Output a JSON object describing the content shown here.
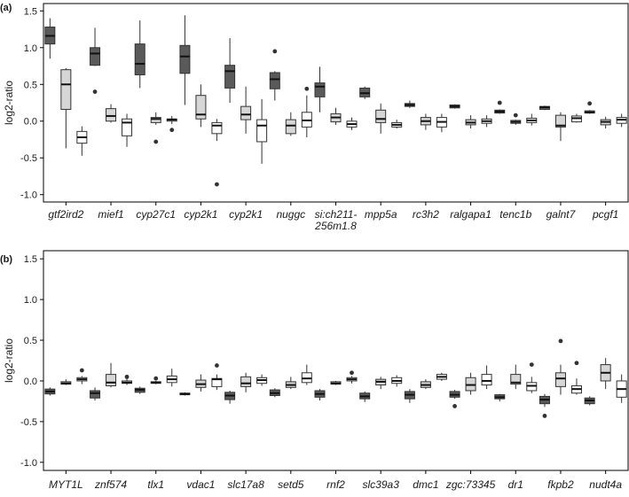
{
  "chart_data": [
    {
      "panel": "(a)",
      "type": "box",
      "ylabel": "log2-ratio",
      "ylim": [
        -1.1,
        1.6
      ],
      "yticks": [
        -1.0,
        -0.5,
        0.0,
        0.5,
        1.0,
        1.5
      ],
      "ytick_labels": [
        "-1.0",
        "-0.5",
        "0.0",
        "0.5",
        "1.0",
        "1.5"
      ],
      "series_colors": [
        "#5a5a5a",
        "#d6d6d6",
        "#ffffff"
      ],
      "groups": [
        {
          "label": [
            "gtf2ird2"
          ],
          "boxes": [
            {
              "min": 0.85,
              "q1": 1.05,
              "median": 1.16,
              "q3": 1.28,
              "max": 1.4,
              "outliers": []
            },
            {
              "min": -0.37,
              "q1": 0.16,
              "median": 0.5,
              "q3": 0.7,
              "max": 0.72,
              "outliers": []
            },
            {
              "min": -0.47,
              "q1": -0.3,
              "median": -0.22,
              "q3": -0.14,
              "max": -0.07,
              "outliers": []
            }
          ]
        },
        {
          "label": [
            "mief1"
          ],
          "boxes": [
            {
              "min": 0.75,
              "q1": 0.76,
              "median": 0.92,
              "q3": 1.0,
              "max": 1.27,
              "outliers": [
                0.4
              ]
            },
            {
              "min": -0.02,
              "q1": 0.0,
              "median": 0.07,
              "q3": 0.17,
              "max": 0.23,
              "outliers": []
            },
            {
              "min": -0.35,
              "q1": -0.2,
              "median": -0.02,
              "q3": 0.03,
              "max": 0.1,
              "outliers": []
            }
          ]
        },
        {
          "label": [
            "cyp27c1"
          ],
          "boxes": [
            {
              "min": 0.45,
              "q1": 0.63,
              "median": 0.78,
              "q3": 1.05,
              "max": 1.37,
              "outliers": []
            },
            {
              "min": -0.05,
              "q1": -0.02,
              "median": 0.03,
              "q3": 0.05,
              "max": 0.12,
              "outliers": [
                -0.28
              ]
            },
            {
              "min": -0.04,
              "q1": 0.0,
              "median": 0.02,
              "q3": 0.03,
              "max": 0.07,
              "outliers": [
                -0.12
              ]
            }
          ]
        },
        {
          "label": [
            "cyp2k1"
          ],
          "boxes": [
            {
              "min": 0.22,
              "q1": 0.65,
              "median": 0.88,
              "q3": 1.03,
              "max": 1.44,
              "outliers": []
            },
            {
              "min": -0.08,
              "q1": 0.03,
              "median": 0.09,
              "q3": 0.35,
              "max": 0.5,
              "outliers": []
            },
            {
              "min": -0.27,
              "q1": -0.17,
              "median": -0.06,
              "q3": -0.02,
              "max": 0.03,
              "outliers": [
                -0.86
              ]
            }
          ]
        },
        {
          "label": [
            "cyp2k1"
          ],
          "boxes": [
            {
              "min": 0.25,
              "q1": 0.45,
              "median": 0.68,
              "q3": 0.76,
              "max": 1.13,
              "outliers": []
            },
            {
              "min": -0.17,
              "q1": 0.02,
              "median": 0.09,
              "q3": 0.2,
              "max": 0.47,
              "outliers": []
            },
            {
              "min": -0.58,
              "q1": -0.28,
              "median": -0.06,
              "q3": 0.02,
              "max": 0.3,
              "outliers": []
            }
          ]
        },
        {
          "label": [
            "nuggc"
          ],
          "boxes": [
            {
              "min": 0.28,
              "q1": 0.44,
              "median": 0.57,
              "q3": 0.66,
              "max": 0.68,
              "outliers": [
                0.95
              ]
            },
            {
              "min": -0.2,
              "q1": -0.17,
              "median": -0.06,
              "q3": 0.02,
              "max": 0.12,
              "outliers": []
            },
            {
              "min": -0.22,
              "q1": -0.08,
              "median": 0.01,
              "q3": 0.12,
              "max": 0.35,
              "outliers": [
                0.44
              ]
            }
          ]
        },
        {
          "label": [
            "si:ch211-",
            "256m1.8"
          ],
          "boxes": [
            {
              "min": 0.12,
              "q1": 0.33,
              "median": 0.47,
              "q3": 0.52,
              "max": 0.74,
              "outliers": []
            },
            {
              "min": -0.05,
              "q1": -0.01,
              "median": 0.05,
              "q3": 0.1,
              "max": 0.18,
              "outliers": []
            },
            {
              "min": -0.12,
              "q1": -0.08,
              "median": -0.04,
              "q3": 0.0,
              "max": 0.05,
              "outliers": []
            }
          ]
        },
        {
          "label": [
            "mpp5a"
          ],
          "boxes": [
            {
              "min": 0.3,
              "q1": 0.33,
              "median": 0.38,
              "q3": 0.45,
              "max": 0.47,
              "outliers": []
            },
            {
              "min": -0.17,
              "q1": -0.02,
              "median": 0.03,
              "q3": 0.15,
              "max": 0.24,
              "outliers": []
            },
            {
              "min": -0.1,
              "q1": -0.08,
              "median": -0.05,
              "q3": -0.02,
              "max": 0.02,
              "outliers": []
            }
          ]
        },
        {
          "label": [
            "rc3h2"
          ],
          "boxes": [
            {
              "min": 0.18,
              "q1": 0.2,
              "median": 0.22,
              "q3": 0.24,
              "max": 0.28,
              "outliers": []
            },
            {
              "min": -0.12,
              "q1": -0.05,
              "median": 0.0,
              "q3": 0.05,
              "max": 0.1,
              "outliers": []
            },
            {
              "min": -0.15,
              "q1": -0.08,
              "median": -0.01,
              "q3": 0.05,
              "max": 0.1,
              "outliers": []
            }
          ]
        },
        {
          "label": [
            "ralgapa1"
          ],
          "boxes": [
            {
              "min": 0.17,
              "q1": 0.18,
              "median": 0.2,
              "q3": 0.22,
              "max": 0.23,
              "outliers": []
            },
            {
              "min": -0.1,
              "q1": -0.05,
              "median": -0.02,
              "q3": 0.02,
              "max": 0.08,
              "outliers": []
            },
            {
              "min": -0.08,
              "q1": -0.03,
              "median": 0.0,
              "q3": 0.03,
              "max": 0.08,
              "outliers": []
            }
          ]
        },
        {
          "label": [
            "tenc1b"
          ],
          "boxes": [
            {
              "min": 0.1,
              "q1": 0.11,
              "median": 0.13,
              "q3": 0.15,
              "max": 0.16,
              "outliers": [
                0.25
              ]
            },
            {
              "min": -0.05,
              "q1": -0.03,
              "median": -0.01,
              "q3": 0.01,
              "max": 0.02,
              "outliers": [
                0.08
              ]
            },
            {
              "min": -0.06,
              "q1": -0.02,
              "median": 0.01,
              "q3": 0.04,
              "max": 0.1,
              "outliers": []
            }
          ]
        },
        {
          "label": [
            "galnt7"
          ],
          "boxes": [
            {
              "min": 0.15,
              "q1": 0.16,
              "median": 0.19,
              "q3": 0.2,
              "max": 0.21,
              "outliers": []
            },
            {
              "min": -0.27,
              "q1": -0.08,
              "median": -0.06,
              "q3": 0.08,
              "max": 0.12,
              "outliers": []
            },
            {
              "min": -0.02,
              "q1": -0.01,
              "median": 0.04,
              "q3": 0.07,
              "max": 0.1,
              "outliers": []
            }
          ]
        },
        {
          "label": [
            "pcgf1"
          ],
          "boxes": [
            {
              "min": 0.1,
              "q1": 0.11,
              "median": 0.12,
              "q3": 0.14,
              "max": 0.15,
              "outliers": [
                0.24
              ]
            },
            {
              "min": -0.1,
              "q1": -0.05,
              "median": -0.01,
              "q3": 0.02,
              "max": 0.06,
              "outliers": []
            },
            {
              "min": -0.08,
              "q1": -0.03,
              "median": 0.02,
              "q3": 0.05,
              "max": 0.1,
              "outliers": []
            }
          ]
        }
      ]
    },
    {
      "panel": "(b)",
      "type": "box",
      "ylabel": "log2-ratio",
      "ylim": [
        -1.1,
        1.6
      ],
      "yticks": [
        -1.0,
        -0.5,
        0.0,
        0.5,
        1.0,
        1.5
      ],
      "ytick_labels": [
        "-1.0",
        "-0.5",
        "0.0",
        "0.5",
        "1.0",
        "1.5"
      ],
      "series_colors": [
        "#5a5a5a",
        "#d6d6d6",
        "#ffffff"
      ],
      "groups": [
        {
          "label": [
            "MYT1L"
          ],
          "boxes": [
            {
              "min": -0.18,
              "q1": -0.16,
              "median": -0.13,
              "q3": -0.1,
              "max": -0.08,
              "outliers": []
            },
            {
              "min": -0.05,
              "q1": -0.04,
              "median": -0.03,
              "q3": -0.01,
              "max": 0.02,
              "outliers": []
            },
            {
              "min": -0.04,
              "q1": 0.0,
              "median": 0.02,
              "q3": 0.04,
              "max": 0.06,
              "outliers": [
                0.13
              ]
            }
          ]
        },
        {
          "label": [
            "znf574"
          ],
          "boxes": [
            {
              "min": -0.24,
              "q1": -0.21,
              "median": -0.15,
              "q3": -0.12,
              "max": -0.08,
              "outliers": []
            },
            {
              "min": -0.08,
              "q1": -0.06,
              "median": -0.02,
              "q3": 0.08,
              "max": 0.22,
              "outliers": []
            },
            {
              "min": -0.05,
              "q1": -0.03,
              "median": -0.02,
              "q3": 0.0,
              "max": 0.04,
              "outliers": [
                0.05
              ]
            }
          ]
        },
        {
          "label": [
            "tlx1"
          ],
          "boxes": [
            {
              "min": -0.16,
              "q1": -0.14,
              "median": -0.11,
              "q3": -0.09,
              "max": -0.07,
              "outliers": []
            },
            {
              "min": -0.04,
              "q1": -0.03,
              "median": -0.02,
              "q3": -0.01,
              "max": 0.0,
              "outliers": [
                0.03
              ]
            },
            {
              "min": -0.07,
              "q1": -0.02,
              "median": 0.02,
              "q3": 0.06,
              "max": 0.15,
              "outliers": []
            }
          ]
        },
        {
          "label": [
            "vdac1"
          ],
          "boxes": [
            {
              "min": -0.18,
              "q1": -0.17,
              "median": -0.16,
              "q3": -0.15,
              "max": -0.14,
              "outliers": []
            },
            {
              "min": -0.13,
              "q1": -0.08,
              "median": -0.04,
              "q3": 0.01,
              "max": 0.08,
              "outliers": []
            },
            {
              "min": -0.11,
              "q1": -0.07,
              "median": 0.02,
              "q3": 0.03,
              "max": 0.08,
              "outliers": [
                0.19
              ]
            }
          ]
        },
        {
          "label": [
            "slc17a8"
          ],
          "boxes": [
            {
              "min": -0.28,
              "q1": -0.23,
              "median": -0.18,
              "q3": -0.14,
              "max": -0.12,
              "outliers": []
            },
            {
              "min": -0.14,
              "q1": -0.07,
              "median": -0.03,
              "q3": 0.05,
              "max": 0.1,
              "outliers": []
            },
            {
              "min": -0.06,
              "q1": -0.03,
              "median": 0.01,
              "q3": 0.04,
              "max": 0.08,
              "outliers": []
            }
          ]
        },
        {
          "label": [
            "setd5"
          ],
          "boxes": [
            {
              "min": -0.2,
              "q1": -0.18,
              "median": -0.15,
              "q3": -0.11,
              "max": -0.09,
              "outliers": []
            },
            {
              "min": -0.1,
              "q1": -0.08,
              "median": -0.05,
              "q3": -0.01,
              "max": 0.05,
              "outliers": []
            },
            {
              "min": -0.05,
              "q1": -0.02,
              "median": 0.03,
              "q3": 0.1,
              "max": 0.2,
              "outliers": []
            }
          ]
        },
        {
          "label": [
            "rnf2"
          ],
          "boxes": [
            {
              "min": -0.24,
              "q1": -0.2,
              "median": -0.16,
              "q3": -0.12,
              "max": -0.1,
              "outliers": []
            },
            {
              "min": -0.05,
              "q1": -0.04,
              "median": -0.03,
              "q3": -0.01,
              "max": 0.0,
              "outliers": []
            },
            {
              "min": -0.03,
              "q1": 0.0,
              "median": 0.02,
              "q3": 0.04,
              "max": 0.06,
              "outliers": [
                0.1
              ]
            }
          ]
        },
        {
          "label": [
            "slc39a3"
          ],
          "boxes": [
            {
              "min": -0.26,
              "q1": -0.22,
              "median": -0.19,
              "q3": -0.15,
              "max": -0.13,
              "outliers": []
            },
            {
              "min": -0.1,
              "q1": -0.05,
              "median": -0.01,
              "q3": 0.02,
              "max": 0.05,
              "outliers": []
            },
            {
              "min": -0.07,
              "q1": -0.03,
              "median": 0.0,
              "q3": 0.04,
              "max": 0.07,
              "outliers": []
            }
          ]
        },
        {
          "label": [
            "dmc1"
          ],
          "boxes": [
            {
              "min": -0.27,
              "q1": -0.22,
              "median": -0.17,
              "q3": -0.13,
              "max": -0.1,
              "outliers": []
            },
            {
              "min": -0.1,
              "q1": -0.08,
              "median": -0.05,
              "q3": -0.01,
              "max": 0.02,
              "outliers": []
            },
            {
              "min": 0.0,
              "q1": 0.02,
              "median": 0.05,
              "q3": 0.08,
              "max": 0.1,
              "outliers": []
            }
          ]
        },
        {
          "label": [
            "zgc:73345"
          ],
          "boxes": [
            {
              "min": -0.22,
              "q1": -0.2,
              "median": -0.17,
              "q3": -0.13,
              "max": -0.11,
              "outliers": [
                -0.31
              ]
            },
            {
              "min": -0.17,
              "q1": -0.12,
              "median": -0.05,
              "q3": 0.04,
              "max": 0.1,
              "outliers": []
            },
            {
              "min": -0.1,
              "q1": -0.05,
              "median": 0.0,
              "q3": 0.08,
              "max": 0.19,
              "outliers": []
            }
          ]
        },
        {
          "label": [
            "dr1"
          ],
          "boxes": [
            {
              "min": -0.25,
              "q1": -0.22,
              "median": -0.2,
              "q3": -0.17,
              "max": -0.16,
              "outliers": []
            },
            {
              "min": -0.1,
              "q1": -0.04,
              "median": -0.02,
              "q3": 0.08,
              "max": 0.2,
              "outliers": []
            },
            {
              "min": -0.15,
              "q1": -0.12,
              "median": -0.06,
              "q3": -0.02,
              "max": 0.05,
              "outliers": [
                0.2
              ]
            }
          ]
        },
        {
          "label": [
            "fkpb2"
          ],
          "boxes": [
            {
              "min": -0.32,
              "q1": -0.28,
              "median": -0.23,
              "q3": -0.19,
              "max": -0.16,
              "outliers": [
                -0.43
              ]
            },
            {
              "min": -0.17,
              "q1": -0.07,
              "median": 0.03,
              "q3": 0.1,
              "max": 0.2,
              "outliers": [
                0.49
              ]
            },
            {
              "min": -0.17,
              "q1": -0.15,
              "median": -0.1,
              "q3": -0.06,
              "max": 0.03,
              "outliers": [
                0.22
              ]
            }
          ]
        },
        {
          "label": [
            "nudt4a"
          ],
          "boxes": [
            {
              "min": -0.3,
              "q1": -0.28,
              "median": -0.24,
              "q3": -0.21,
              "max": -0.19,
              "outliers": []
            },
            {
              "min": -0.1,
              "q1": 0.0,
              "median": 0.1,
              "q3": 0.2,
              "max": 0.28,
              "outliers": []
            },
            {
              "min": -0.27,
              "q1": -0.2,
              "median": -0.1,
              "q3": 0.0,
              "max": 0.08,
              "outliers": []
            }
          ]
        }
      ]
    }
  ]
}
